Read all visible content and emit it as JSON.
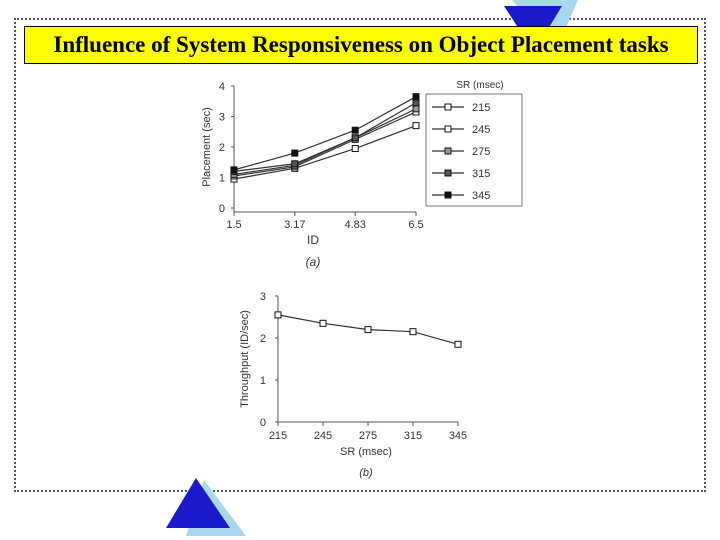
{
  "header": {
    "title": "Influence of System Responsiveness on Object Placement tasks"
  },
  "colors": {
    "accent_blue": "#1a1acc",
    "accent_light_blue": "#a8d8f0",
    "title_background": "#ffff00"
  },
  "chart_data": [
    {
      "type": "line",
      "panel_label": "(a)",
      "xlabel": "ID",
      "ylabel": "Placement (sec)",
      "x": [
        1.5,
        3.17,
        4.83,
        6.5
      ],
      "x_ticks": [
        "1.5",
        "3.17",
        "4.83",
        "6.5"
      ],
      "y_ticks": [
        "0",
        "1",
        "2",
        "3",
        "4"
      ],
      "ylim": [
        0,
        4
      ],
      "legend_title": "SR (msec)",
      "legend_position": "right",
      "series": [
        {
          "name": "215",
          "values": [
            0.95,
            1.3,
            1.95,
            2.7
          ],
          "marker": "open-square"
        },
        {
          "name": "245",
          "values": [
            1.05,
            1.35,
            2.25,
            3.15
          ],
          "marker": "open-square"
        },
        {
          "name": "275",
          "values": [
            1.1,
            1.4,
            2.3,
            3.25
          ],
          "marker": "gray-square"
        },
        {
          "name": "315",
          "values": [
            1.2,
            1.45,
            2.3,
            3.45
          ],
          "marker": "dark-square"
        },
        {
          "name": "345",
          "values": [
            1.25,
            1.8,
            2.55,
            3.65
          ],
          "marker": "black-square"
        }
      ]
    },
    {
      "type": "line",
      "panel_label": "(b)",
      "xlabel": "SR (msec)",
      "ylabel": "Throughput (ID/sec)",
      "categories": [
        "215",
        "245",
        "275",
        "315",
        "345"
      ],
      "y_ticks": [
        "0",
        "1",
        "2",
        "3"
      ],
      "ylim": [
        0,
        3
      ],
      "series": [
        {
          "values": [
            2.55,
            2.35,
            2.2,
            2.15,
            1.85
          ],
          "marker": "open-square"
        }
      ]
    }
  ]
}
